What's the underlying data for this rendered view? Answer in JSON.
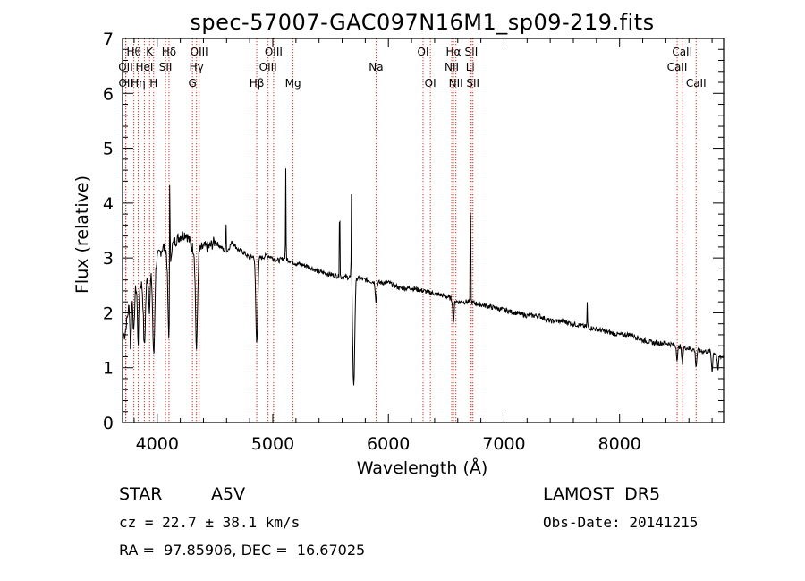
{
  "chart_data": {
    "type": "line",
    "title": "spec-57007-GAC097N16M1_sp09-219.fits",
    "xlabel": "Wavelength (Å)",
    "ylabel": "Flux (relative)",
    "xlim": [
      3700,
      8900
    ],
    "ylim": [
      0,
      7
    ],
    "xticks": [
      4000,
      5000,
      6000,
      7000,
      8000
    ],
    "yticks": [
      0,
      1,
      2,
      3,
      4,
      5,
      6,
      7
    ],
    "line_color": "#000000",
    "marker_color": "#c0392b",
    "continuum": {
      "x": [
        3720,
        3760,
        3800,
        3850,
        3900,
        3950,
        4000,
        4050,
        4100,
        4150,
        4200,
        4250,
        4300,
        4350,
        4400,
        4450,
        4500,
        4550,
        4600,
        4650,
        4700,
        4750,
        4800,
        4850,
        4900,
        4950,
        5000,
        5050,
        5100,
        5150,
        5200,
        5300,
        5400,
        5500,
        5600,
        5700,
        5800,
        5900,
        6000,
        6100,
        6200,
        6300,
        6400,
        6500,
        6600,
        6700,
        6800,
        6900,
        7000,
        7100,
        7200,
        7300,
        7400,
        7500,
        7600,
        7700,
        7800,
        7900,
        8000,
        8100,
        8200,
        8300,
        8400,
        8500,
        8600,
        8700,
        8800,
        8880
      ],
      "y": [
        1.6,
        2.2,
        2.4,
        2.5,
        2.6,
        2.7,
        3.0,
        3.2,
        3.1,
        3.3,
        3.4,
        3.45,
        3.2,
        3.1,
        3.2,
        3.2,
        3.3,
        3.2,
        3.1,
        3.3,
        3.15,
        3.1,
        3.0,
        3.05,
        3.0,
        3.05,
        3.0,
        2.95,
        3.0,
        2.95,
        2.9,
        2.85,
        2.75,
        2.7,
        2.65,
        2.65,
        2.6,
        2.55,
        2.55,
        2.45,
        2.45,
        2.4,
        2.35,
        2.3,
        2.2,
        2.2,
        2.15,
        2.1,
        2.05,
        2.0,
        1.95,
        1.95,
        1.85,
        1.85,
        1.8,
        1.75,
        1.7,
        1.65,
        1.6,
        1.6,
        1.5,
        1.45,
        1.45,
        1.4,
        1.35,
        1.3,
        1.3,
        1.2
      ]
    },
    "absorptions": [
      {
        "x": 3770,
        "depth": 0.9
      },
      {
        "x": 3797,
        "depth": 0.8
      },
      {
        "x": 3835,
        "depth": 1.0
      },
      {
        "x": 3889,
        "depth": 1.2
      },
      {
        "x": 3933,
        "depth": 0.6
      },
      {
        "x": 3970,
        "depth": 1.6
      },
      {
        "x": 4101,
        "depth": 1.6
      },
      {
        "x": 4340,
        "depth": 1.8
      },
      {
        "x": 4861,
        "depth": 1.6
      },
      {
        "x": 5700,
        "depth": 2.0
      },
      {
        "x": 5893,
        "depth": 0.35
      },
      {
        "x": 6563,
        "depth": 0.4
      },
      {
        "x": 8498,
        "depth": 0.25
      },
      {
        "x": 8542,
        "depth": 0.3
      },
      {
        "x": 8662,
        "depth": 0.3
      },
      {
        "x": 8800,
        "depth": 0.35
      },
      {
        "x": 8850,
        "depth": 0.3
      }
    ],
    "emissions": [
      {
        "x": 4109,
        "height": 2.7
      },
      {
        "x": 4595,
        "height": 0.6
      },
      {
        "x": 5112,
        "height": 1.6
      },
      {
        "x": 5578,
        "height": 1.6
      },
      {
        "x": 5680,
        "height": 1.6
      },
      {
        "x": 6710,
        "height": 2.5
      },
      {
        "x": 7720,
        "height": 0.45
      }
    ],
    "line_markers": [
      {
        "label": "Hθ",
        "x": 3798,
        "row": 0
      },
      {
        "label": "OII",
        "x": 3727,
        "row": 1
      },
      {
        "label": "OII",
        "x": 3729,
        "row": 2
      },
      {
        "label": "HeI",
        "x": 3889,
        "row": 1
      },
      {
        "label": "Hη",
        "x": 3835,
        "row": 2
      },
      {
        "label": "K",
        "x": 3934,
        "row": 0
      },
      {
        "label": "H",
        "x": 3969,
        "row": 2
      },
      {
        "label": "Hδ",
        "x": 4102,
        "row": 0
      },
      {
        "label": "SII",
        "x": 4072,
        "row": 1
      },
      {
        "label": "OIII",
        "x": 4363,
        "row": 0
      },
      {
        "label": "Hγ",
        "x": 4340,
        "row": 1
      },
      {
        "label": "G",
        "x": 4305,
        "row": 2
      },
      {
        "label": "Hβ",
        "x": 4861,
        "row": 2
      },
      {
        "label": "OIII",
        "x": 5007,
        "row": 0
      },
      {
        "label": "OIII",
        "x": 4959,
        "row": 1
      },
      {
        "label": "Mg",
        "x": 5175,
        "row": 2
      },
      {
        "label": "Na",
        "x": 5893,
        "row": 1
      },
      {
        "label": "OI",
        "x": 6300,
        "row": 0
      },
      {
        "label": "OI",
        "x": 6363,
        "row": 2
      },
      {
        "label": "Hα",
        "x": 6563,
        "row": 0
      },
      {
        "label": "NII",
        "x": 6548,
        "row": 1
      },
      {
        "label": "NII",
        "x": 6584,
        "row": 2
      },
      {
        "label": "SII",
        "x": 6717,
        "row": 0
      },
      {
        "label": "Li",
        "x": 6708,
        "row": 1
      },
      {
        "label": "SII",
        "x": 6731,
        "row": 2
      },
      {
        "label": "CaII",
        "x": 8542,
        "row": 0
      },
      {
        "label": "CaII",
        "x": 8498,
        "row": 1
      },
      {
        "label": "CaII",
        "x": 8662,
        "row": 2
      }
    ]
  },
  "info": {
    "class_label": "STAR",
    "subclass": "A5V",
    "survey": "LAMOST  DR5",
    "cz": "cz = 22.7 ± 38.1 km/s",
    "obs_date": "Obs-Date: 20141215",
    "coords": "RA =  97.85906, DEC =  16.67025"
  }
}
